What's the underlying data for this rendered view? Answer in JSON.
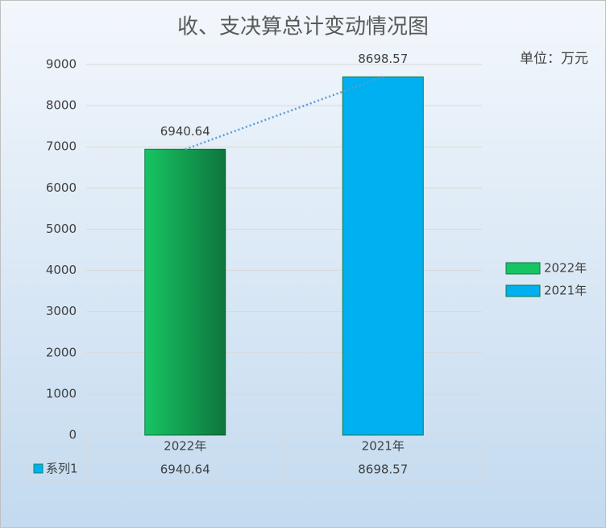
{
  "chart_data": {
    "type": "bar",
    "title": "收、支决算总计变动情况图",
    "unit_label": "单位：万元",
    "categories": [
      "2022年",
      "2021年"
    ],
    "colors": [
      "#17c463",
      "#00b0f0"
    ],
    "series_name": "系列1",
    "values": [
      6940.64,
      8698.57
    ],
    "ylim": [
      0,
      9000
    ],
    "yticks": [
      0,
      1000,
      2000,
      3000,
      4000,
      5000,
      6000,
      7000,
      8000,
      9000
    ],
    "grid": true,
    "trendline": true,
    "legend": "right",
    "data_table": true
  }
}
